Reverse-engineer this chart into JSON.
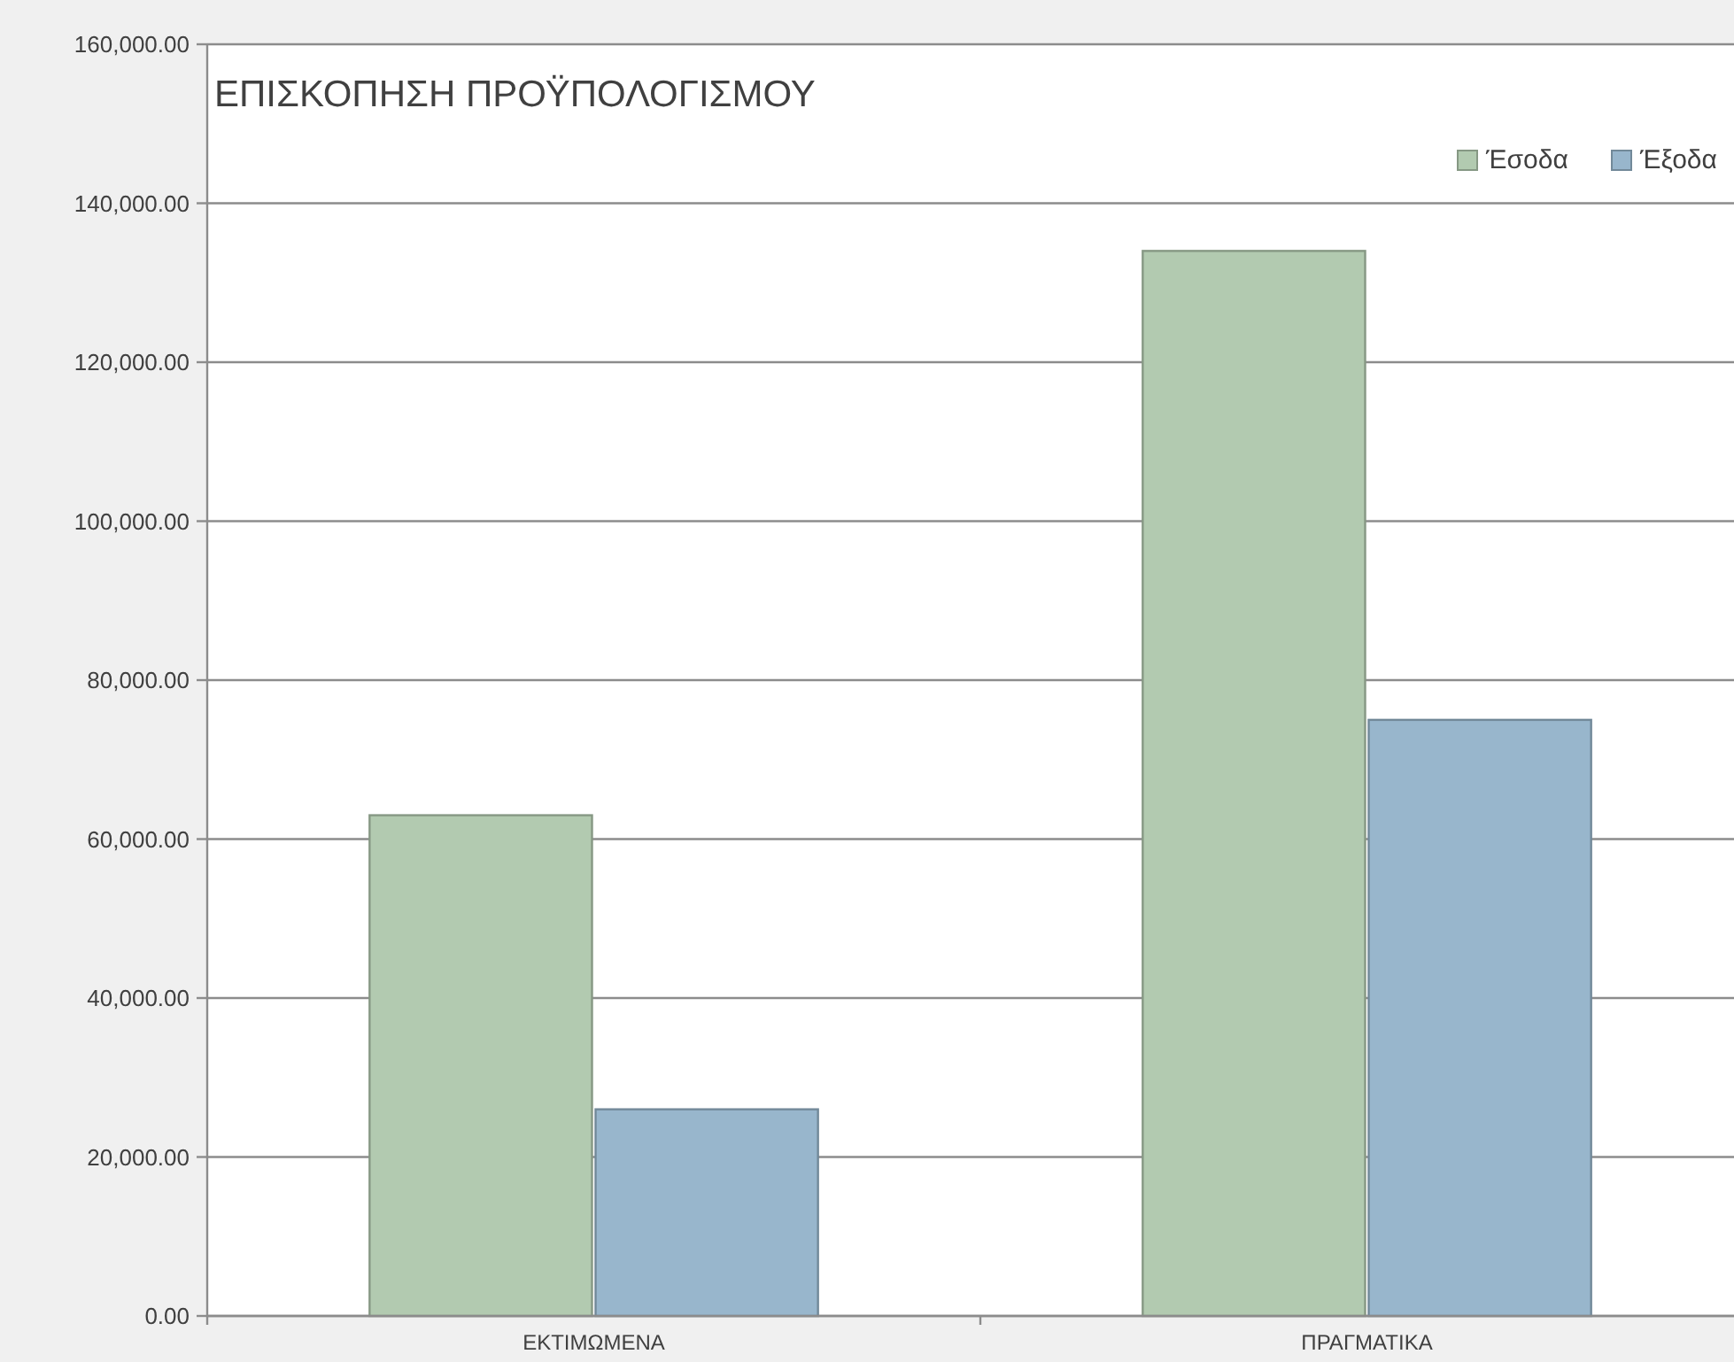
{
  "chart_data": {
    "type": "bar",
    "title": "ΕΠΙΣΚΟΠΗΣΗ ΠΡΟΫΠΟΛΟΓΙΣΜΟΥ",
    "categories": [
      "ΕΚΤΙΜΩΜΕΝΑ",
      "ΠΡΑΓΜΑΤΙΚΑ"
    ],
    "series": [
      {
        "name": "Έσοδα",
        "color": "#b2cab0",
        "values": [
          63000,
          134000
        ]
      },
      {
        "name": "Έξοδα",
        "color": "#98b6cc",
        "values": [
          26000,
          75000
        ]
      }
    ],
    "ylim": [
      0,
      160000
    ],
    "yticks": [
      {
        "value": 0,
        "label": "0.00"
      },
      {
        "value": 20000,
        "label": "20,000.00"
      },
      {
        "value": 40000,
        "label": "40,000.00"
      },
      {
        "value": 60000,
        "label": "60,000.00"
      },
      {
        "value": 80000,
        "label": "80,000.00"
      },
      {
        "value": 100000,
        "label": "100,000.00"
      },
      {
        "value": 120000,
        "label": "120,000.00"
      },
      {
        "value": 140000,
        "label": "140,000.00"
      },
      {
        "value": 160000,
        "label": "160,000.00"
      }
    ],
    "grid": "y",
    "legend": "top right"
  }
}
